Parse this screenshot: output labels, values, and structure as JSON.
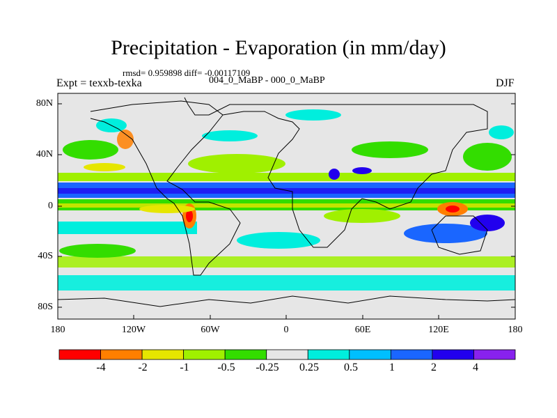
{
  "title": "Precipitation - Evaporation (in mm/day)",
  "stats_line": "rmsd= 0.959898 diff= -0.00117109",
  "experiment": "Expt = texxb-texka",
  "difference": "004_0_MaBP - 000_0_MaBP",
  "season": "DJF",
  "y_axis_labels": [
    "80N",
    "40N",
    "0",
    "40S",
    "80S"
  ],
  "x_axis_labels": [
    "180",
    "120W",
    "60W",
    "0",
    "60E",
    "120E",
    "180"
  ],
  "colorbar": {
    "labels": [
      "-4",
      "-2",
      "-1",
      "-0.5",
      "-0.25",
      "0.25",
      "0.5",
      "1",
      "2",
      "4"
    ],
    "colors": [
      "#ff0000",
      "#ff7f00",
      "#e6e600",
      "#a0f000",
      "#33dd00",
      "#e6e6e6",
      "#00eedd",
      "#00bfff",
      "#1a66ff",
      "#2200ee",
      "#8822ee"
    ]
  },
  "palette": {
    "background": "#e6e6e6",
    "coast": "#000000"
  }
}
